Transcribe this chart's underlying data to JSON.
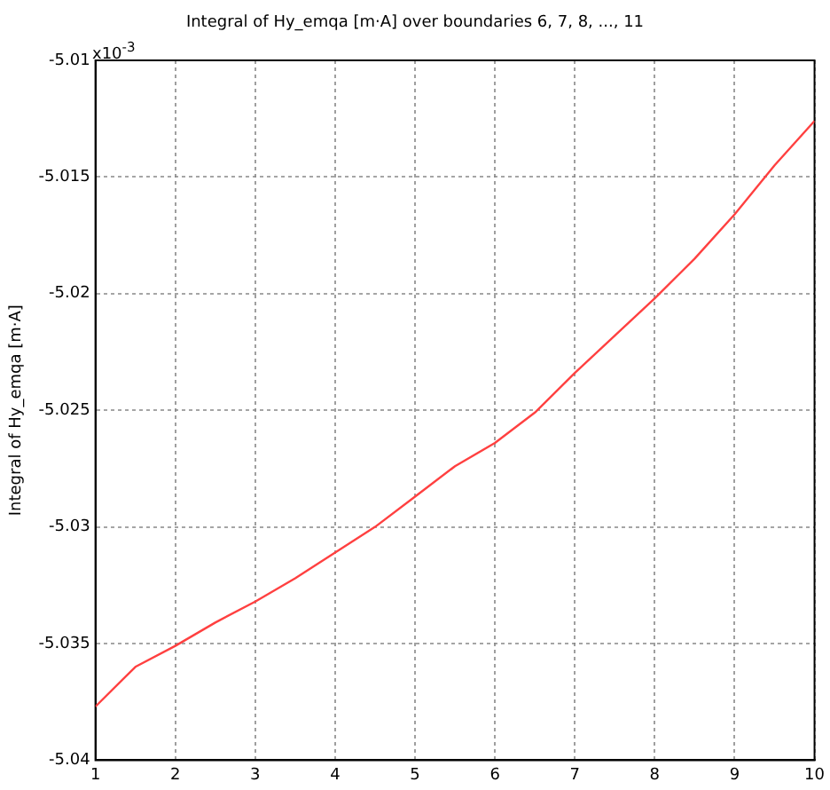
{
  "chart_data": {
    "type": "line",
    "title": "Integral of Hy_emqa [m·A] over boundaries 6, 7, 8, ..., 11",
    "ylabel": "Integral of Hy_emqa [m·A]",
    "annotations": [
      "x10$^{-3}$"
    ],
    "x": [
      1,
      1.5,
      2,
      2.5,
      3,
      3.5,
      4,
      4.5,
      5,
      5.5,
      6,
      6.5,
      7,
      7.5,
      8,
      8.5,
      9,
      9.5,
      10
    ],
    "series": [
      {
        "color": "#ff4040",
        "values": [
          -5.0377,
          -5.036,
          -5.0351,
          -5.0341,
          -5.0332,
          -5.0322,
          -5.0311,
          -5.03,
          -5.0287,
          -5.0274,
          -5.0264,
          -5.0251,
          -5.0234,
          -5.0218,
          -5.0202,
          -5.0185,
          -5.0166,
          -5.0145,
          -5.0126
        ]
      }
    ],
    "xlim": [
      1,
      10
    ],
    "xticks": [
      1,
      2,
      3,
      4,
      5,
      6,
      7,
      8,
      9,
      10
    ],
    "ylim": [
      -5.04,
      -5.01
    ],
    "yticks": [
      -5.04,
      -5.035,
      -5.03,
      -5.025,
      -5.02,
      -5.015,
      -5.01
    ],
    "grid": true,
    "line_style": "solid",
    "marker": "none",
    "legend": false
  }
}
